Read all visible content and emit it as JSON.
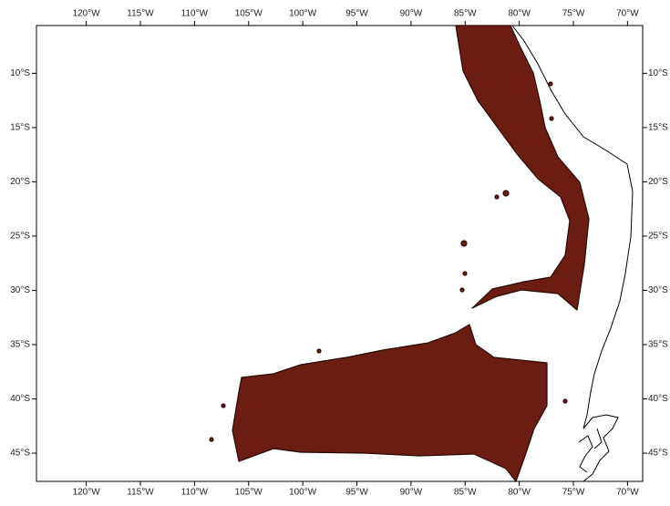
{
  "map": {
    "xlim": [
      -124.6,
      -68.6
    ],
    "ylim": [
      -47.6,
      -5.6
    ],
    "xticks": [
      {
        "value": -120,
        "label": "120°W"
      },
      {
        "value": -115,
        "label": "115°W"
      },
      {
        "value": -110,
        "label": "110°W"
      },
      {
        "value": -105,
        "label": "105°W"
      },
      {
        "value": -100,
        "label": "100°W"
      },
      {
        "value": -95,
        "label": "95°W"
      },
      {
        "value": -90,
        "label": "90°W"
      },
      {
        "value": -85,
        "label": "85°W"
      },
      {
        "value": -80,
        "label": "80°W"
      },
      {
        "value": -75,
        "label": "75°W"
      },
      {
        "value": -70,
        "label": "70°W"
      }
    ],
    "yticks": [
      {
        "value": -10,
        "label": "10°S"
      },
      {
        "value": -15,
        "label": "15°S"
      },
      {
        "value": -20,
        "label": "20°S"
      },
      {
        "value": -25,
        "label": "25°S"
      },
      {
        "value": -30,
        "label": "30°S"
      },
      {
        "value": -35,
        "label": "35°S"
      },
      {
        "value": -40,
        "label": "40°S"
      },
      {
        "value": -45,
        "label": "45°S"
      }
    ]
  }
}
